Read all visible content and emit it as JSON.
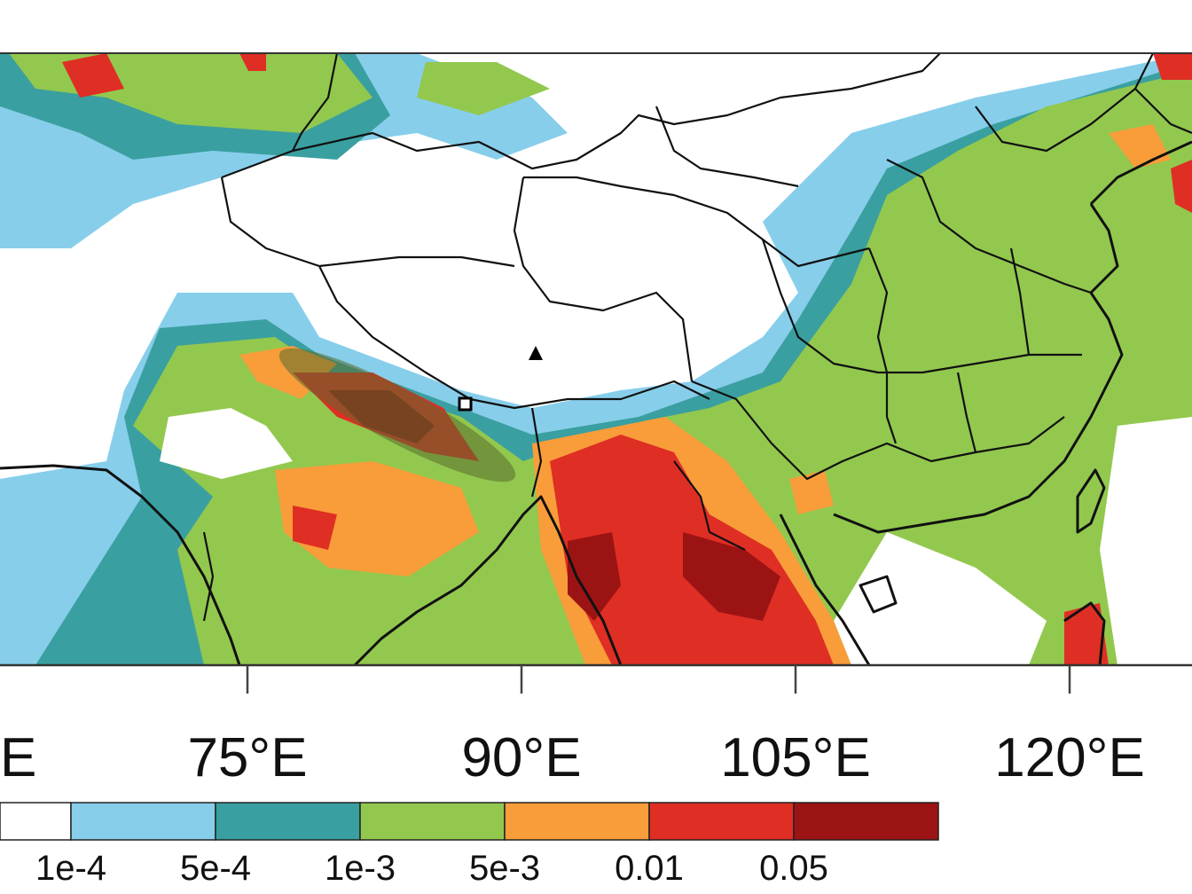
{
  "map": {
    "lon_axis": {
      "ticks": [
        {
          "label": "E"
        },
        {
          "label": "75°E",
          "lon": 75
        },
        {
          "label": "90°E",
          "lon": 90
        },
        {
          "label": "105°E",
          "lon": 105
        },
        {
          "label": "120°E",
          "lon": 120
        }
      ]
    },
    "colorbar": {
      "colors": [
        "#ffffff",
        "#87ceeb",
        "#3a9fa0",
        "#92c84e",
        "#f89d3a",
        "#df2e24",
        "#9c1313"
      ],
      "labels": [
        "1e-4",
        "5e-4",
        "1e-3",
        "5e-3",
        "0.01",
        "0.05"
      ]
    },
    "markers": {
      "triangle": "triangle-marker",
      "square": "square-marker",
      "ellipse": "highlight-ellipse"
    }
  }
}
